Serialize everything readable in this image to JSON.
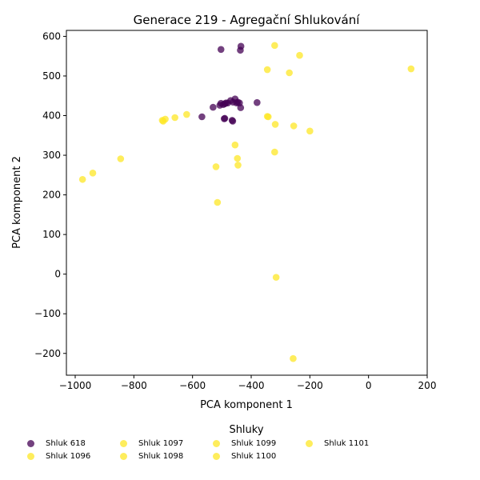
{
  "chart_data": {
    "type": "scatter",
    "title": "Generace 219 - Agregační Shlukování",
    "xlabel": "PCA komponent 1",
    "ylabel": "PCA komponent 2",
    "xlim": [
      -1030,
      200
    ],
    "ylim": [
      -255,
      615
    ],
    "xticks": [
      -1000,
      -800,
      -600,
      -400,
      -200,
      0,
      200
    ],
    "yticks": [
      -200,
      -100,
      0,
      100,
      200,
      300,
      400,
      500,
      600
    ],
    "xtick_labels": [
      "−1000",
      "−800",
      "−600",
      "−400",
      "−200",
      "0",
      "200"
    ],
    "ytick_labels": [
      "−200",
      "−100",
      "0",
      "100",
      "200",
      "300",
      "400",
      "500",
      "600"
    ],
    "grid": false,
    "legend_title": "Shluky",
    "legend_position": "bottom",
    "series": [
      {
        "name": "Shluk 618",
        "color": "#440154",
        "points": [
          [
            -503,
            567
          ],
          [
            -435,
            575
          ],
          [
            -437,
            565
          ],
          [
            -568,
            397
          ],
          [
            -530,
            421
          ],
          [
            -507,
            426
          ],
          [
            -503,
            431
          ],
          [
            -495,
            428
          ],
          [
            -490,
            430
          ],
          [
            -486,
            432
          ],
          [
            -480,
            432
          ],
          [
            -470,
            438
          ],
          [
            -462,
            434
          ],
          [
            -455,
            442
          ],
          [
            -450,
            432
          ],
          [
            -446,
            434
          ],
          [
            -440,
            432
          ],
          [
            -436,
            420
          ],
          [
            -380,
            433
          ],
          [
            -492,
            392
          ],
          [
            -490,
            393
          ],
          [
            -465,
            388
          ],
          [
            -463,
            386
          ]
        ]
      },
      {
        "name": "Shluk 1096",
        "color": "#fde725",
        "points": [
          [
            -320,
            577
          ],
          [
            -235,
            552
          ],
          [
            -345,
            516
          ],
          [
            -270,
            508
          ],
          [
            145,
            518
          ],
          [
            -345,
            398
          ],
          [
            -342,
            397
          ],
          [
            -318,
            378
          ],
          [
            -255,
            374
          ],
          [
            -200,
            361
          ],
          [
            -620,
            403
          ],
          [
            -660,
            395
          ],
          [
            -693,
            391
          ],
          [
            -700,
            386
          ],
          [
            -703,
            388
          ],
          [
            -455,
            326
          ],
          [
            -320,
            308
          ],
          [
            -447,
            292
          ],
          [
            -445,
            275
          ],
          [
            -520,
            271
          ],
          [
            -845,
            291
          ],
          [
            -940,
            255
          ],
          [
            -975,
            239
          ],
          [
            -515,
            181
          ],
          [
            -315,
            -8
          ],
          [
            -257,
            -213
          ]
        ]
      },
      {
        "name": "Shluk 1097",
        "color": "#fde725",
        "points": []
      },
      {
        "name": "Shluk 1098",
        "color": "#fde725",
        "points": []
      },
      {
        "name": "Shluk 1099",
        "color": "#fde725",
        "points": []
      },
      {
        "name": "Shluk 1100",
        "color": "#fde725",
        "points": []
      },
      {
        "name": "Shluk 1101",
        "color": "#fde725",
        "points": []
      }
    ]
  }
}
